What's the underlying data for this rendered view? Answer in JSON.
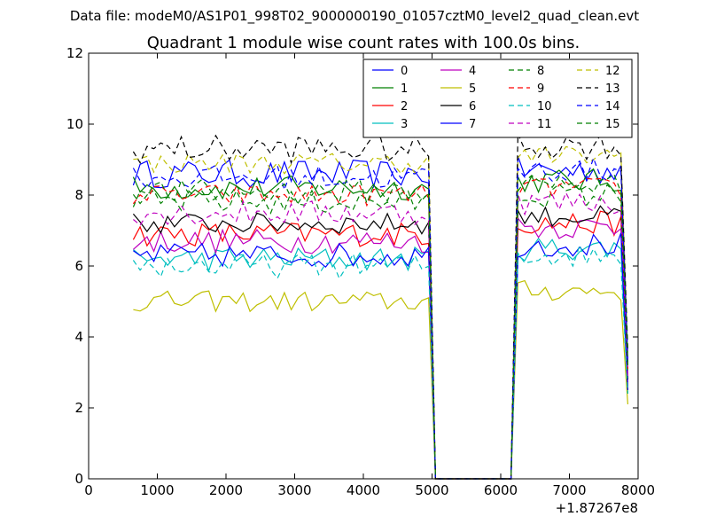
{
  "chart_data": {
    "type": "line",
    "suptitle": "Data file: modeM0/AS1P01_998T02_9000000190_01057cztM0_level2_quad_clean.evt",
    "title": "Quadrant 1 module wise count rates with 100.0s bins.",
    "xlabel": "",
    "ylabel": "",
    "x_offset_label": "+1.87267e8",
    "xlim": [
      0,
      8000
    ],
    "ylim": [
      0,
      12
    ],
    "xticks": [
      0,
      1000,
      2000,
      3000,
      4000,
      5000,
      6000,
      7000,
      8000
    ],
    "yticks": [
      0,
      2,
      4,
      6,
      8,
      10,
      12
    ],
    "grid": false,
    "legend_position": "top-right",
    "legend_columns": 4,
    "segment1": {
      "x_start": 650,
      "x_end": 4950,
      "step": 100
    },
    "drop": {
      "x_last_valid": 4950,
      "x_zero_start": 5050,
      "x_zero_end": 6150
    },
    "segment2": {
      "x_start": 6250,
      "x_end": 7750,
      "step": 100,
      "x_final": 7850
    },
    "series": [
      {
        "name": "0",
        "color": "#0000ff",
        "dash": "solid",
        "mean1": 8.6,
        "mean2": 8.7,
        "amp": 0.4,
        "final": 3.4
      },
      {
        "name": "1",
        "color": "#008000",
        "dash": "solid",
        "mean1": 8.2,
        "mean2": 8.4,
        "amp": 0.35,
        "final": 3.2
      },
      {
        "name": "2",
        "color": "#ff0000",
        "dash": "solid",
        "mean1": 6.9,
        "mean2": 7.2,
        "amp": 0.35,
        "final": 2.6
      },
      {
        "name": "3",
        "color": "#00bfbf",
        "dash": "solid",
        "mean1": 6.2,
        "mean2": 6.5,
        "amp": 0.35,
        "final": 2.4
      },
      {
        "name": "4",
        "color": "#bf00bf",
        "dash": "solid",
        "mean1": 6.7,
        "mean2": 7.1,
        "amp": 0.35,
        "final": 2.6
      },
      {
        "name": "5",
        "color": "#bfbf00",
        "dash": "solid",
        "mean1": 5.0,
        "mean2": 5.3,
        "amp": 0.3,
        "final": 2.1
      },
      {
        "name": "6",
        "color": "#000000",
        "dash": "solid",
        "mean1": 7.2,
        "mean2": 7.4,
        "amp": 0.3,
        "final": 2.8
      },
      {
        "name": "7",
        "color": "#0000ff",
        "dash": "solid",
        "mean1": 6.3,
        "mean2": 6.6,
        "amp": 0.35,
        "final": 2.5
      },
      {
        "name": "8",
        "color": "#008000",
        "dash": "dashed",
        "mean1": 7.8,
        "mean2": 8.0,
        "amp": 0.35,
        "final": 3.0
      },
      {
        "name": "9",
        "color": "#ff0000",
        "dash": "dashed",
        "mean1": 8.0,
        "mean2": 8.2,
        "amp": 0.3,
        "final": 3.1
      },
      {
        "name": "10",
        "color": "#00bfbf",
        "dash": "dashed",
        "mean1": 6.0,
        "mean2": 6.3,
        "amp": 0.35,
        "final": 2.4
      },
      {
        "name": "11",
        "color": "#bf00bf",
        "dash": "dashed",
        "mean1": 7.5,
        "mean2": 7.8,
        "amp": 0.35,
        "final": 2.9
      },
      {
        "name": "12",
        "color": "#bfbf00",
        "dash": "dashed",
        "mean1": 8.9,
        "mean2": 9.1,
        "amp": 0.3,
        "final": 3.5
      },
      {
        "name": "13",
        "color": "#000000",
        "dash": "dashed",
        "mean1": 9.3,
        "mean2": 9.4,
        "amp": 0.4,
        "final": 3.6
      },
      {
        "name": "14",
        "color": "#0000ff",
        "dash": "dashed",
        "mean1": 8.5,
        "mean2": 8.7,
        "amp": 0.35,
        "final": 3.3
      },
      {
        "name": "15",
        "color": "#008000",
        "dash": "dashed",
        "mean1": 8.1,
        "mean2": 8.3,
        "amp": 0.35,
        "final": 3.2
      }
    ]
  }
}
